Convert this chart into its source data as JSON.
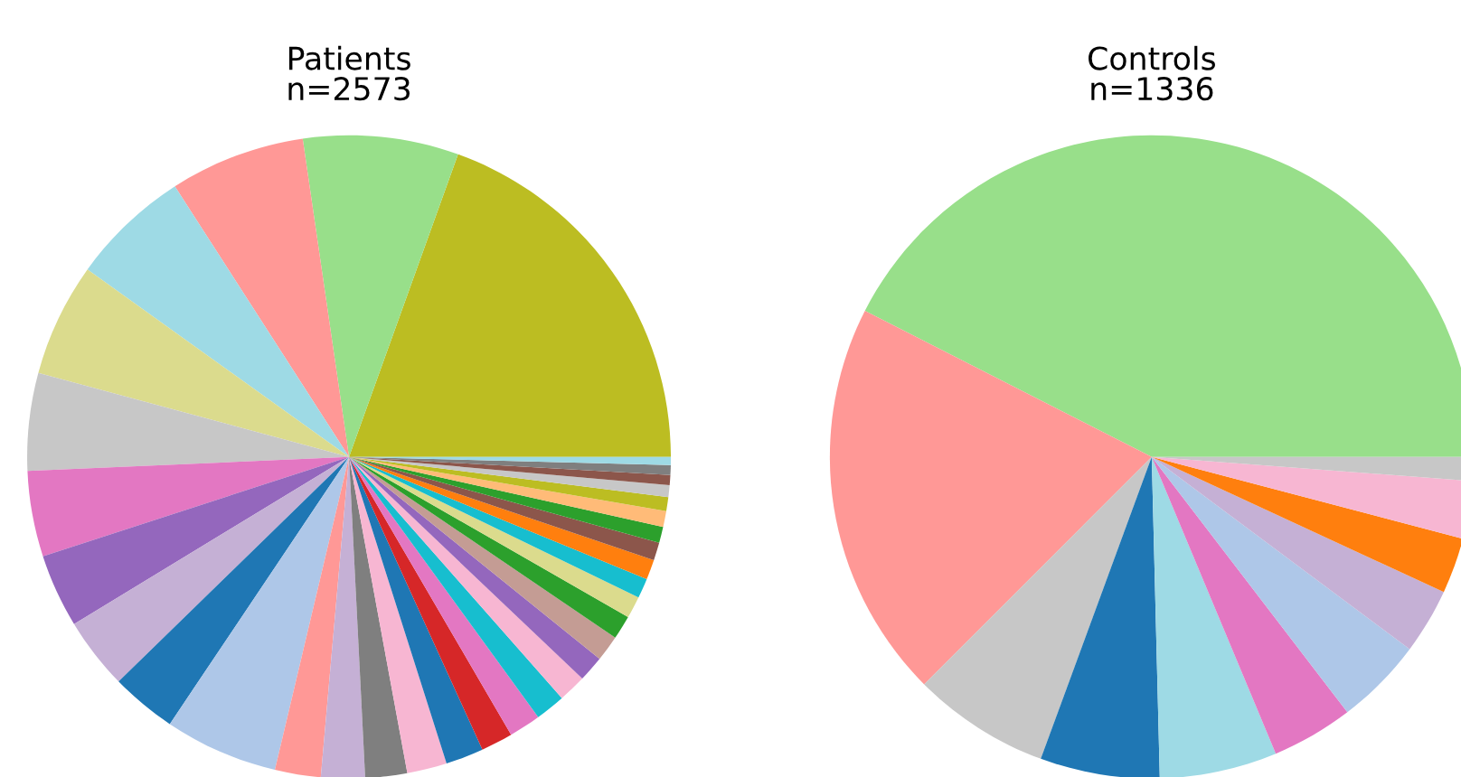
{
  "chart_data": [
    {
      "type": "pie",
      "title": "Patients\nn=2573",
      "categories": [
        null,
        null,
        null,
        null,
        null,
        null,
        null,
        null,
        null,
        null,
        null,
        null,
        null,
        null,
        null,
        null,
        null,
        null,
        null,
        null,
        null,
        null,
        null,
        null,
        null,
        null,
        null,
        null,
        null,
        null,
        null,
        null,
        null,
        null
      ],
      "values": [
        19.5,
        7.8,
        6.8,
        6.0,
        5.7,
        4.9,
        4.3,
        3.7,
        3.6,
        3.3,
        5.7,
        2.3,
        2.2,
        2.1,
        2.0,
        1.9,
        1.6,
        1.6,
        1.5,
        1.4,
        1.3,
        1.3,
        1.2,
        1.1,
        1.0,
        1.0,
        0.9,
        0.8,
        0.8,
        0.7,
        0.6,
        0.5,
        0.5,
        0.4
      ],
      "colors": [
        "#bcbd22",
        "#98df8a",
        "#ff9896",
        "#9edae5",
        "#dbdb8d",
        "#c7c7c7",
        "#e377c2",
        "#9467bd",
        "#c5b0d5",
        "#1f77b4",
        "#aec7e8",
        "#ff9896",
        "#c5b0d5",
        "#7f7f7f",
        "#f7b6d2",
        "#1f77b4",
        "#d62728",
        "#e377c2",
        "#17becf",
        "#f7b6d2",
        "#9467bd",
        "#c49c94",
        "#2ca02c",
        "#dbdb8d",
        "#17becf",
        "#ff7f0e",
        "#8c564b",
        "#2ca02c",
        "#ffbb78",
        "#bcbd22",
        "#c7c7c7",
        "#8c564b",
        "#7f7f7f",
        "#9edae5"
      ]
    },
    {
      "type": "pie",
      "title": "Controls\nn=1336",
      "categories": [
        null,
        null,
        null,
        null,
        null,
        null,
        null,
        null,
        null,
        null,
        null
      ],
      "values": [
        42.5,
        20.0,
        6.9,
        6.0,
        5.9,
        4.1,
        4.4,
        3.3,
        2.8,
        2.9,
        1.2
      ],
      "colors": [
        "#98df8a",
        "#ff9896",
        "#c7c7c7",
        "#1f77b4",
        "#9edae5",
        "#e377c2",
        "#aec7e8",
        "#c5b0d5",
        "#ff7f0e",
        "#f7b6d2",
        "#c7c7c7"
      ]
    }
  ]
}
